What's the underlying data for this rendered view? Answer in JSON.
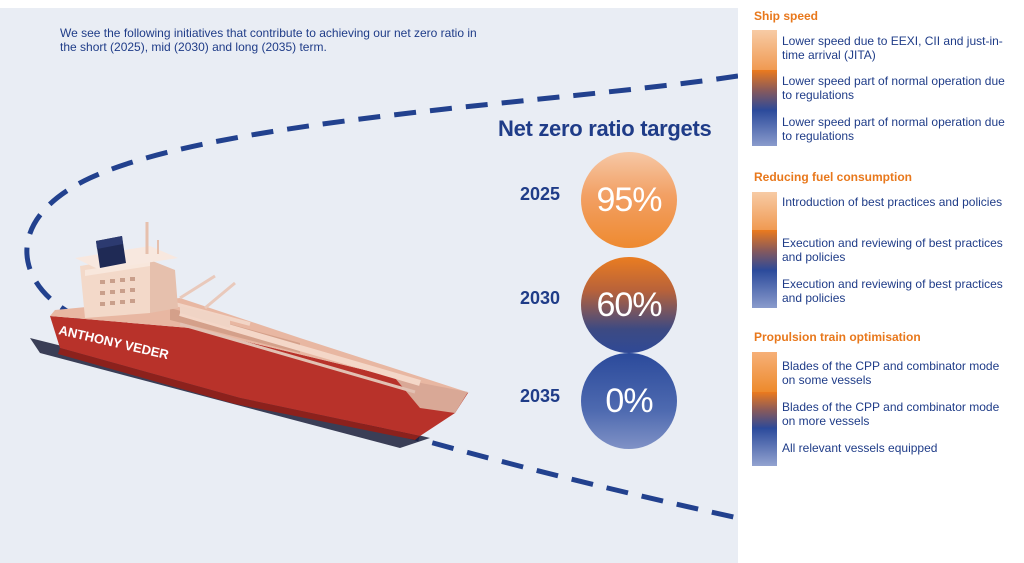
{
  "intro_text": "We see the following initiatives that contribute to achieving our net zero ratio in the short (2025), mid (2030) and long (2035) term.",
  "targets": {
    "title": "Net zero ratio targets",
    "items": [
      {
        "year": "2025",
        "value": "95%"
      },
      {
        "year": "2030",
        "value": "60%"
      },
      {
        "year": "2035",
        "value": "0%"
      }
    ]
  },
  "ship": {
    "name": "ANTHONY VEDER"
  },
  "sections": [
    {
      "title": "Ship speed",
      "items": [
        {
          "text": "Lower speed due to EEXI, CII and just-in-time arrival (JITA)"
        },
        {
          "text": "Lower speed part of normal operation due to regulations"
        },
        {
          "text": "Lower speed part of normal operation due to regulations"
        }
      ]
    },
    {
      "title": "Reducing fuel consumption",
      "items": [
        {
          "text": "Introduction of best practices and policies"
        },
        {
          "text": "Execution and reviewing of best practices and policies"
        },
        {
          "text": "Execution and reviewing of best practices and policies"
        }
      ]
    },
    {
      "title": "Propulsion train optimisation",
      "items": [
        {
          "text": "Blades of the CPP and combinator mode on some vessels"
        },
        {
          "text": "Blades of the CPP and combinator mode on more vessels"
        },
        {
          "text": "All relevant vessels equipped"
        }
      ]
    }
  ],
  "colors": {
    "navy": "#1f3c88",
    "orange": "#e8781c",
    "hull_red": "#b8322a"
  }
}
